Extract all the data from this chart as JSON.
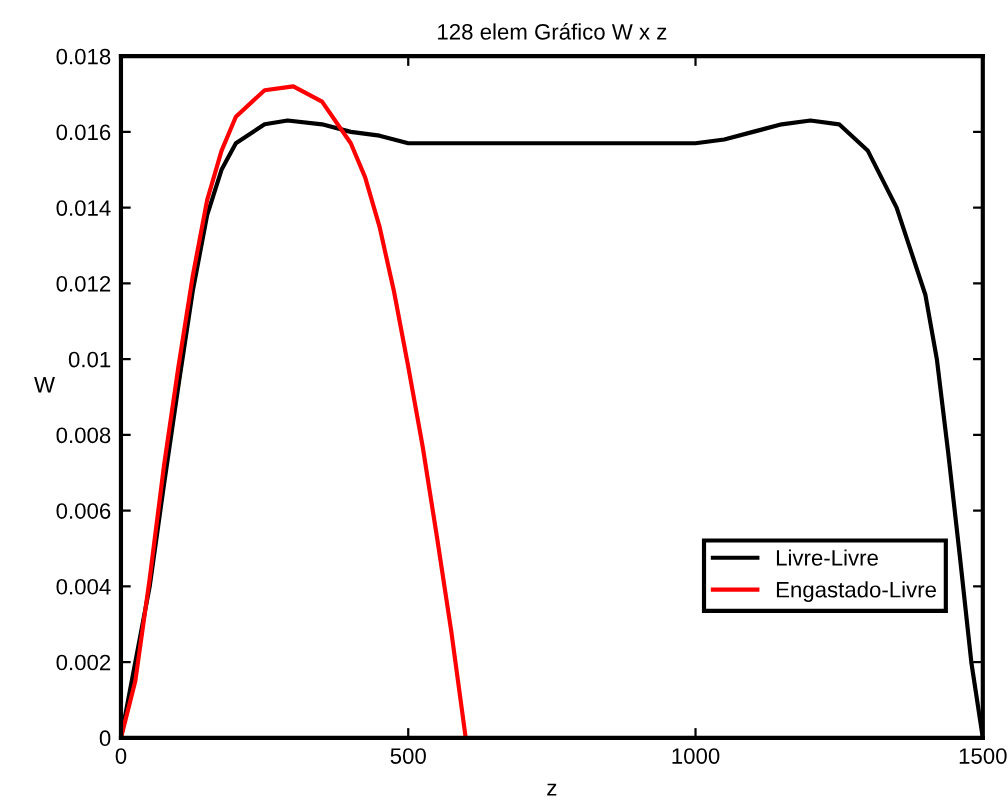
{
  "chart_data": {
    "type": "line",
    "title": "128 elem Gráfico W x z",
    "xlabel": "z",
    "ylabel": "W",
    "xlim": [
      0,
      1500
    ],
    "xticks": [
      0,
      500,
      1000,
      1500
    ],
    "ylim": [
      0,
      0.018
    ],
    "yticks": [
      0,
      0.002,
      0.004,
      0.006,
      0.008,
      0.01,
      0.012,
      0.014,
      0.016,
      0.018
    ],
    "grid": false,
    "legend": "bottom right",
    "line_style": "solid",
    "marker": "none",
    "series": [
      {
        "name": "Livre-Livre",
        "color": "#000000",
        "x": [
          0,
          50,
          75,
          100,
          125,
          150,
          175,
          200,
          250,
          290,
          350,
          400,
          450,
          500,
          750,
          1000,
          1050,
          1100,
          1150,
          1200,
          1250,
          1300,
          1350,
          1400,
          1420,
          1440,
          1460,
          1480,
          1500
        ],
        "values": [
          0,
          0.004,
          0.0067,
          0.0093,
          0.0118,
          0.0138,
          0.015,
          0.0157,
          0.0162,
          0.0163,
          0.0162,
          0.016,
          0.0159,
          0.0157,
          0.0157,
          0.0157,
          0.0158,
          0.016,
          0.0162,
          0.0163,
          0.0162,
          0.0155,
          0.014,
          0.0117,
          0.01,
          0.0075,
          0.0048,
          0.002,
          0
        ]
      },
      {
        "name": "Engastado-Livre",
        "color": "#ff0000",
        "x": [
          0,
          25,
          50,
          75,
          100,
          125,
          150,
          175,
          200,
          250,
          300,
          350,
          400,
          425,
          450,
          475,
          500,
          525,
          550,
          575,
          600
        ],
        "values": [
          0,
          0.0015,
          0.0042,
          0.0072,
          0.0098,
          0.0122,
          0.0142,
          0.0155,
          0.0164,
          0.0171,
          0.0172,
          0.0168,
          0.0157,
          0.0148,
          0.0135,
          0.0118,
          0.0098,
          0.0077,
          0.0053,
          0.0028,
          0
        ]
      }
    ]
  }
}
